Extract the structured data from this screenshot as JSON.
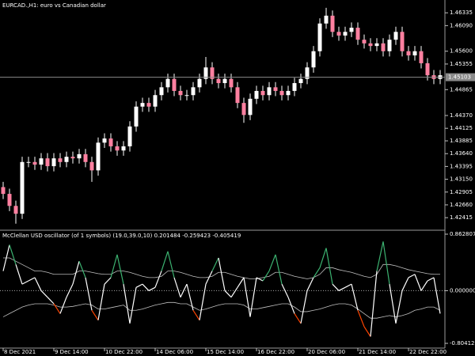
{
  "chart_data": [
    {
      "type": "candlestick",
      "title": "EURCAD.,H1: euro vs Canadian dollar",
      "up_color": "#ffffff",
      "down_color": "#ff80a0",
      "wick_color": "#ffffff",
      "open": [
        1.43,
        1.4287,
        1.4264,
        1.4249,
        1.4348,
        1.4348,
        1.4343,
        1.4355,
        1.434,
        1.4355,
        1.4348,
        1.4358,
        1.4355,
        1.4363,
        1.4348,
        1.4332,
        1.4385,
        1.4393,
        1.4378,
        1.437,
        1.4378,
        1.4416,
        1.4454,
        1.4461,
        1.4454,
        1.4476,
        1.4491,
        1.4507,
        1.4484,
        1.4476,
        1.4476,
        1.4491,
        1.4507,
        1.4529,
        1.4507,
        1.4499,
        1.4507,
        1.4491,
        1.4461,
        1.4438,
        1.4469,
        1.4484,
        1.4476,
        1.4491,
        1.4484,
        1.4476,
        1.4484,
        1.4499,
        1.4507,
        1.4529,
        1.456,
        1.4613,
        1.4628,
        1.4597,
        1.459,
        1.4597,
        1.4605,
        1.4582,
        1.4575,
        1.457,
        1.4575,
        1.456,
        1.4582,
        1.4597,
        1.456,
        1.4552,
        1.456,
        1.4537,
        1.4514,
        1.4507
      ],
      "high": [
        1.431,
        1.4297,
        1.4274,
        1.4358,
        1.4358,
        1.4358,
        1.4365,
        1.4365,
        1.4365,
        1.4365,
        1.4368,
        1.4368,
        1.4373,
        1.4373,
        1.4358,
        1.4395,
        1.4403,
        1.4403,
        1.4388,
        1.4388,
        1.4426,
        1.4464,
        1.4471,
        1.4471,
        1.4486,
        1.4501,
        1.4517,
        1.4517,
        1.4494,
        1.4486,
        1.4501,
        1.4517,
        1.4549,
        1.4539,
        1.4517,
        1.4517,
        1.4517,
        1.4501,
        1.4471,
        1.4479,
        1.4494,
        1.4494,
        1.4501,
        1.4501,
        1.4494,
        1.4494,
        1.4509,
        1.4517,
        1.4539,
        1.457,
        1.4623,
        1.4643,
        1.4638,
        1.4607,
        1.4607,
        1.4615,
        1.4615,
        1.4592,
        1.4585,
        1.4585,
        1.4585,
        1.4592,
        1.4607,
        1.4607,
        1.457,
        1.457,
        1.457,
        1.4547,
        1.4524,
        1.4524
      ],
      "low": [
        1.4277,
        1.4254,
        1.423,
        1.4239,
        1.4338,
        1.4333,
        1.4333,
        1.433,
        1.433,
        1.4338,
        1.4338,
        1.4345,
        1.4345,
        1.4338,
        1.431,
        1.4322,
        1.4375,
        1.4368,
        1.436,
        1.436,
        1.4368,
        1.4406,
        1.4444,
        1.4444,
        1.4444,
        1.4466,
        1.4481,
        1.4474,
        1.4466,
        1.4466,
        1.4466,
        1.4481,
        1.4497,
        1.4497,
        1.4489,
        1.4489,
        1.4481,
        1.4451,
        1.4423,
        1.4428,
        1.4459,
        1.4466,
        1.4466,
        1.4474,
        1.4466,
        1.4466,
        1.4474,
        1.4489,
        1.4497,
        1.4519,
        1.455,
        1.4603,
        1.4587,
        1.458,
        1.458,
        1.4587,
        1.4572,
        1.4565,
        1.456,
        1.456,
        1.455,
        1.455,
        1.4572,
        1.455,
        1.4542,
        1.4542,
        1.4527,
        1.4504,
        1.4497,
        1.4497
      ],
      "close": [
        1.4287,
        1.4264,
        1.4249,
        1.4348,
        1.4348,
        1.4343,
        1.4355,
        1.434,
        1.4355,
        1.4348,
        1.4358,
        1.4355,
        1.4363,
        1.4348,
        1.4332,
        1.4385,
        1.4393,
        1.4378,
        1.437,
        1.4378,
        1.4416,
        1.4454,
        1.4461,
        1.4454,
        1.4476,
        1.4491,
        1.4507,
        1.4484,
        1.4476,
        1.4476,
        1.4491,
        1.4507,
        1.4529,
        1.4507,
        1.4499,
        1.4507,
        1.4491,
        1.4461,
        1.4438,
        1.4469,
        1.4484,
        1.4476,
        1.4491,
        1.4484,
        1.4476,
        1.4484,
        1.4499,
        1.4507,
        1.4529,
        1.456,
        1.4613,
        1.4628,
        1.4597,
        1.459,
        1.4597,
        1.4605,
        1.4582,
        1.4575,
        1.457,
        1.4575,
        1.456,
        1.4582,
        1.4597,
        1.456,
        1.4552,
        1.456,
        1.4537,
        1.4514,
        1.4507,
        1.4514
      ],
      "ylim": [
        1.4219,
        1.4658
      ],
      "yticks": [
        1.46335,
        {
          "value": 1.4609,
          "label": "1.46090"
        },
        {
          "value": 1.456,
          "label": "1.45600"
        },
        1.45355,
        1.44865,
        {
          "value": 1.4437,
          "label": "1.44370"
        },
        1.44125,
        1.43885,
        {
          "value": 1.4364,
          "label": "1.43640"
        },
        1.43395,
        {
          "value": 1.4315,
          "label": "1.43150"
        },
        1.42905,
        {
          "value": 1.4266,
          "label": "1.42660"
        },
        1.42415
      ],
      "current_price": 1.45103
    },
    {
      "type": "line",
      "title": "McClellan USD oscillator (of 1 symbols) (19.0,39.0,10) 0.201484 -0.259423 -0.405419",
      "categories": [
        "8 Dec 2021",
        null,
        null,
        null,
        null,
        null,
        null,
        null,
        "9 Dec 14:00",
        null,
        null,
        null,
        null,
        null,
        null,
        null,
        "10 Dec 22:00",
        null,
        null,
        null,
        null,
        null,
        null,
        null,
        "14 Dec 06:00",
        null,
        null,
        null,
        null,
        null,
        null,
        null,
        "15 Dec 14:00",
        null,
        null,
        null,
        null,
        null,
        null,
        null,
        "16 Dec 22:00",
        null,
        null,
        null,
        null,
        null,
        null,
        null,
        "20 Dec 06:00",
        null,
        null,
        null,
        null,
        null,
        null,
        null,
        "21 Dec 14:00",
        null,
        null,
        null,
        null,
        null,
        null,
        null,
        "22 Dec 22:00",
        null,
        null,
        null,
        null,
        null
      ],
      "series": [
        {
          "color": "#ffffff",
          "up_color": "#3cb371",
          "down_color": "#ff4500",
          "values": [
            0.3,
            0.7,
            0.4,
            0.1,
            0.15,
            0.2,
            0.0,
            -0.1,
            -0.2,
            -0.35,
            -0.1,
            0.1,
            0.45,
            0.2,
            -0.3,
            -0.45,
            0.1,
            0.2,
            0.55,
            0.1,
            -0.5,
            0.05,
            0.1,
            0.0,
            0.05,
            0.3,
            0.6,
            0.2,
            -0.1,
            0.1,
            -0.3,
            -0.45,
            0.1,
            0.3,
            0.5,
            0.0,
            -0.1,
            0.05,
            0.2,
            -0.4,
            0.2,
            0.15,
            0.3,
            0.55,
            0.1,
            -0.1,
            -0.35,
            -0.5,
            0.0,
            0.2,
            0.35,
            0.65,
            0.1,
            0.0,
            0.05,
            0.1,
            -0.3,
            -0.55,
            -0.7,
            0.3,
            0.75,
            0.1,
            -0.5,
            0.0,
            0.2,
            0.25,
            0.0,
            0.15,
            0.2,
            -0.35
          ]
        },
        {
          "color": "#c0c0c0",
          "values": [
            0.5,
            0.5,
            0.45,
            0.4,
            0.35,
            0.3,
            0.3,
            0.28,
            0.25,
            0.25,
            0.25,
            0.25,
            0.3,
            0.3,
            0.28,
            0.26,
            0.25,
            0.25,
            0.3,
            0.3,
            0.28,
            0.25,
            0.22,
            0.2,
            0.2,
            0.22,
            0.3,
            0.3,
            0.28,
            0.25,
            0.22,
            0.2,
            0.2,
            0.22,
            0.28,
            0.28,
            0.25,
            0.22,
            0.2,
            0.18,
            0.18,
            0.2,
            0.22,
            0.28,
            0.28,
            0.25,
            0.22,
            0.2,
            0.18,
            0.2,
            0.25,
            0.35,
            0.35,
            0.32,
            0.3,
            0.28,
            0.25,
            0.22,
            0.2,
            0.25,
            0.4,
            0.4,
            0.38,
            0.35,
            0.32,
            0.3,
            0.28,
            0.26,
            0.25,
            0.25
          ]
        },
        {
          "color": "#c0c0c0",
          "values": [
            -0.4,
            -0.35,
            -0.3,
            -0.25,
            -0.22,
            -0.2,
            -0.2,
            -0.2,
            -0.22,
            -0.25,
            -0.25,
            -0.24,
            -0.22,
            -0.2,
            -0.22,
            -0.28,
            -0.28,
            -0.26,
            -0.24,
            -0.22,
            -0.3,
            -0.3,
            -0.28,
            -0.25,
            -0.22,
            -0.2,
            -0.18,
            -0.18,
            -0.2,
            -0.2,
            -0.25,
            -0.3,
            -0.28,
            -0.25,
            -0.22,
            -0.2,
            -0.2,
            -0.2,
            -0.22,
            -0.28,
            -0.28,
            -0.26,
            -0.24,
            -0.22,
            -0.2,
            -0.2,
            -0.25,
            -0.32,
            -0.32,
            -0.3,
            -0.28,
            -0.25,
            -0.22,
            -0.2,
            -0.2,
            -0.22,
            -0.28,
            -0.35,
            -0.42,
            -0.42,
            -0.4,
            -0.38,
            -0.4,
            -0.38,
            -0.35,
            -0.3,
            -0.28,
            -0.25,
            -0.25,
            -0.3
          ]
        }
      ],
      "ylim": [
        -0.804125,
        0.862807
      ],
      "yticks": [
        {
          "value": 0.862807,
          "label": "0.862807"
        },
        {
          "value": 0,
          "label": "0.000000"
        },
        {
          "value": -0.804125,
          "label": "-0.804125"
        }
      ]
    }
  ]
}
